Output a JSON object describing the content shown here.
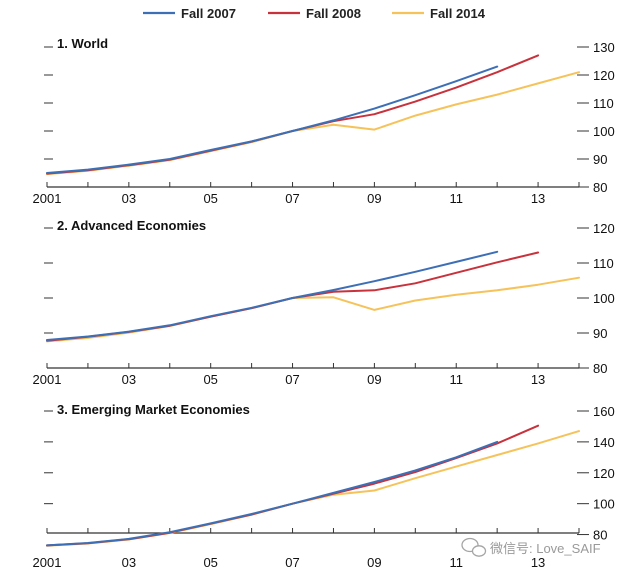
{
  "legend": [
    {
      "name": "Fall 2007",
      "color": "#3d6fb6"
    },
    {
      "name": "Fall 2008",
      "color": "#c8323c"
    },
    {
      "name": "Fall 2014",
      "color": "#f6c25a"
    }
  ],
  "watermark": "微信号: Love_SAIF",
  "chart_data": [
    {
      "type": "line",
      "title": "1. World",
      "x_tick_labels": [
        "2001",
        "03",
        "05",
        "07",
        "09",
        "11",
        "13"
      ],
      "xlim": [
        2001,
        2014
      ],
      "ylim": [
        80,
        130
      ],
      "y_ticks": [
        80,
        90,
        100,
        110,
        120,
        130
      ],
      "series": [
        {
          "name": "Fall 2007",
          "x": [
            2001,
            2002,
            2003,
            2004,
            2005,
            2006,
            2007,
            2008,
            2009,
            2010,
            2011,
            2012
          ],
          "values": [
            85.0,
            86.2,
            88.0,
            90.0,
            93.2,
            96.3,
            100.0,
            103.8,
            108.0,
            112.8,
            117.8,
            123.0
          ]
        },
        {
          "name": "Fall 2008",
          "x": [
            2001,
            2002,
            2003,
            2004,
            2005,
            2006,
            2007,
            2008,
            2009,
            2010,
            2011,
            2012,
            2013
          ],
          "values": [
            84.8,
            86.0,
            87.8,
            89.8,
            93.0,
            96.2,
            100.0,
            103.5,
            106.0,
            110.5,
            115.5,
            121.0,
            127.0
          ]
        },
        {
          "name": "Fall 2014",
          "x": [
            2001,
            2002,
            2003,
            2004,
            2005,
            2006,
            2007,
            2008,
            2009,
            2010,
            2011,
            2012,
            2013,
            2014
          ],
          "values": [
            84.6,
            85.8,
            87.6,
            89.6,
            92.8,
            96.0,
            100.0,
            102.2,
            100.5,
            105.5,
            109.5,
            113.0,
            117.0,
            121.0
          ]
        }
      ]
    },
    {
      "type": "line",
      "title": "2. Advanced Economies",
      "x_tick_labels": [
        "2001",
        "03",
        "05",
        "07",
        "09",
        "11",
        "13"
      ],
      "xlim": [
        2001,
        2014
      ],
      "ylim": [
        80,
        120
      ],
      "y_ticks": [
        80,
        90,
        100,
        110,
        120
      ],
      "series": [
        {
          "name": "Fall 2007",
          "x": [
            2001,
            2002,
            2003,
            2004,
            2005,
            2006,
            2007,
            2008,
            2009,
            2010,
            2011,
            2012
          ],
          "values": [
            88.0,
            89.0,
            90.4,
            92.2,
            94.8,
            97.2,
            100.0,
            102.3,
            104.8,
            107.5,
            110.3,
            113.2
          ]
        },
        {
          "name": "Fall 2008",
          "x": [
            2001,
            2002,
            2003,
            2004,
            2005,
            2006,
            2007,
            2008,
            2009,
            2010,
            2011,
            2012,
            2013
          ],
          "values": [
            87.8,
            88.9,
            90.3,
            92.1,
            94.7,
            97.1,
            100.0,
            101.8,
            102.2,
            104.2,
            107.2,
            110.2,
            113.0
          ]
        },
        {
          "name": "Fall 2014",
          "x": [
            2001,
            2002,
            2003,
            2004,
            2005,
            2006,
            2007,
            2008,
            2009,
            2010,
            2011,
            2012,
            2013,
            2014
          ],
          "values": [
            87.6,
            88.6,
            90.1,
            92.0,
            94.7,
            97.1,
            100.0,
            100.2,
            96.6,
            99.3,
            100.9,
            102.2,
            103.8,
            105.8
          ]
        }
      ]
    },
    {
      "type": "line",
      "title": "3. Emerging Market Economies",
      "x_tick_labels": [
        "2001",
        "03",
        "05",
        "07",
        "09",
        "11",
        "13"
      ],
      "xlim": [
        2001,
        2014
      ],
      "ylim": [
        70,
        160
      ],
      "y_ticks": [
        80,
        100,
        120,
        140,
        160
      ],
      "series": [
        {
          "name": "Fall 2007",
          "x": [
            2001,
            2002,
            2003,
            2004,
            2005,
            2006,
            2007,
            2008,
            2009,
            2010,
            2011,
            2012
          ],
          "values": [
            73.0,
            74.5,
            77.2,
            81.5,
            87.2,
            93.3,
            100.0,
            107.0,
            114.0,
            121.5,
            130.0,
            140.0
          ]
        },
        {
          "name": "Fall 2008",
          "x": [
            2001,
            2002,
            2003,
            2004,
            2005,
            2006,
            2007,
            2008,
            2009,
            2010,
            2011,
            2012,
            2013
          ],
          "values": [
            73.0,
            74.4,
            77.0,
            81.2,
            87.0,
            93.0,
            100.0,
            106.5,
            113.0,
            120.5,
            129.5,
            139.0,
            150.5
          ]
        },
        {
          "name": "Fall 2014",
          "x": [
            2001,
            2002,
            2003,
            2004,
            2005,
            2006,
            2007,
            2008,
            2009,
            2010,
            2011,
            2012,
            2013,
            2014
          ],
          "values": [
            72.8,
            74.2,
            76.8,
            81.0,
            86.8,
            92.8,
            100.0,
            105.8,
            108.5,
            116.5,
            124.0,
            131.5,
            139.0,
            147.0
          ]
        }
      ]
    }
  ]
}
